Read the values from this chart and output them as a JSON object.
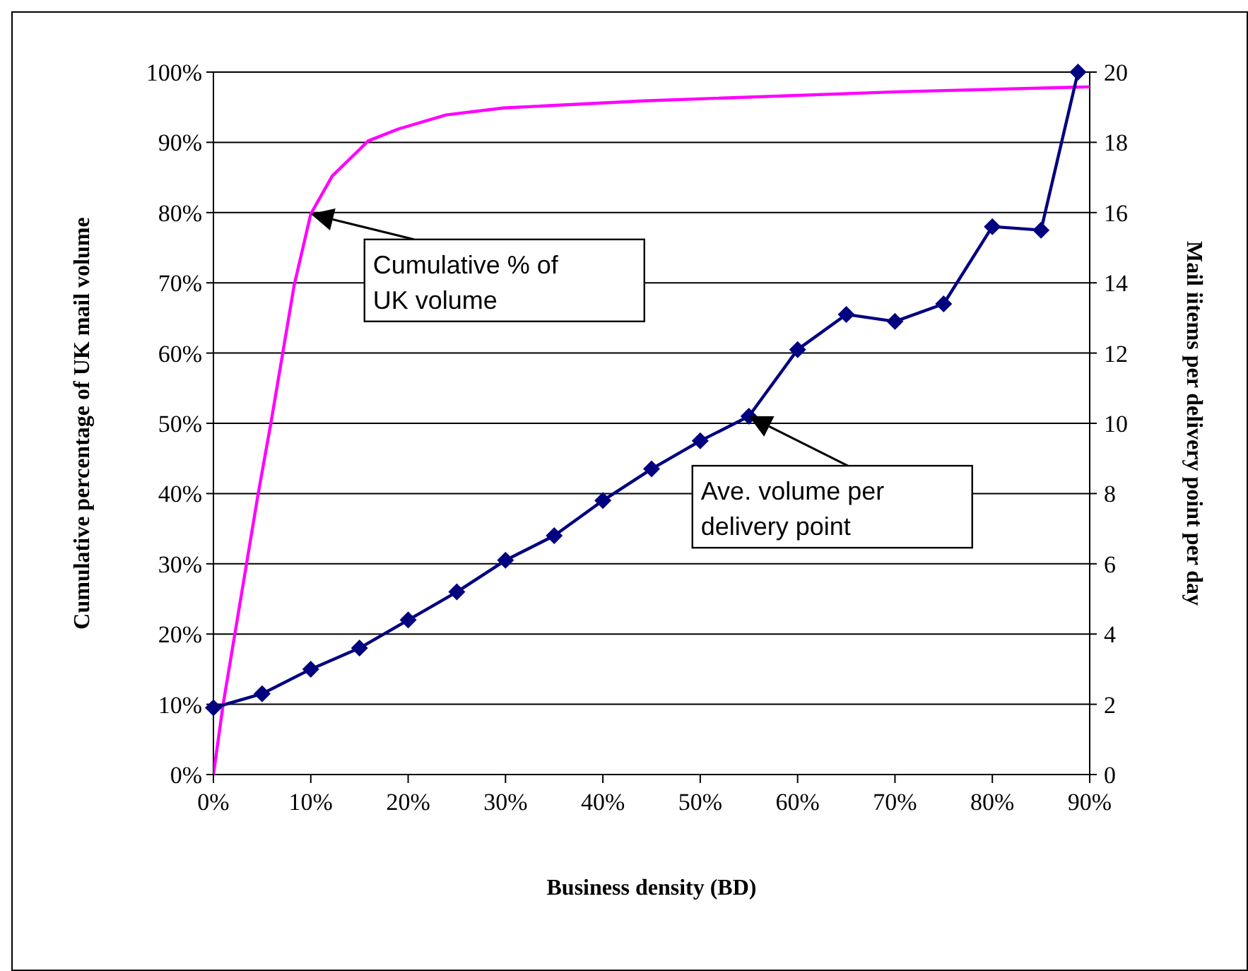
{
  "chart_data": {
    "type": "line",
    "xlabel": "Business density (BD)",
    "ylabel": "Cumulative percentage of UK mail volume",
    "y2label": "Mail iitems per delivery point per day",
    "xlim": [
      0,
      90
    ],
    "xticks": [
      {
        "value": 0,
        "label": "0%"
      },
      {
        "value": 10,
        "label": "10%"
      },
      {
        "value": 20,
        "label": "20%"
      },
      {
        "value": 30,
        "label": "30%"
      },
      {
        "value": 40,
        "label": "40%"
      },
      {
        "value": 50,
        "label": "50%"
      },
      {
        "value": 60,
        "label": "60%"
      },
      {
        "value": 70,
        "label": "70%"
      },
      {
        "value": 80,
        "label": "80%"
      },
      {
        "value": 90,
        "label": "90%"
      }
    ],
    "ylim": [
      0,
      100
    ],
    "yticks": [
      {
        "value": 0,
        "label": "0%"
      },
      {
        "value": 10,
        "label": "10%"
      },
      {
        "value": 20,
        "label": "20%"
      },
      {
        "value": 30,
        "label": "30%"
      },
      {
        "value": 40,
        "label": "40%"
      },
      {
        "value": 50,
        "label": "50%"
      },
      {
        "value": 60,
        "label": "60%"
      },
      {
        "value": 70,
        "label": "70%"
      },
      {
        "value": 80,
        "label": "80%"
      },
      {
        "value": 90,
        "label": "90%"
      },
      {
        "value": 100,
        "label": "100%"
      }
    ],
    "y2lim": [
      0,
      20
    ],
    "y2ticks": [
      0,
      2,
      4,
      6,
      8,
      10,
      12,
      14,
      16,
      18,
      20
    ],
    "grid": "y",
    "series": [
      {
        "color": "#ff00ff",
        "marker": "none",
        "x": [
          0,
          1,
          4.6,
          5.9,
          8.3,
          10,
          12.2,
          15.9,
          19,
          23.9,
          29.8,
          44.2,
          70.3,
          90
        ],
        "values": [
          0,
          10,
          40,
          50,
          69.7,
          79.8,
          85.2,
          90.2,
          91.9,
          93.9,
          94.9,
          95.9,
          97.2,
          97.9
        ]
      },
      {
        "color": "#000080",
        "marker": "diamond",
        "axis": "y2",
        "x": [
          0,
          5,
          10,
          15,
          20,
          25,
          30,
          35,
          40,
          45,
          50,
          55,
          60,
          65,
          70,
          75,
          80,
          85,
          88.8
        ],
        "values": [
          1.9,
          2.3,
          3.0,
          3.6,
          4.4,
          5.2,
          6.1,
          6.8,
          7.8,
          8.7,
          9.5,
          10.2,
          12.1,
          13.1,
          12.9,
          13.4,
          15.6,
          15.5,
          20
        ]
      }
    ],
    "annotations": [
      {
        "text": "Cumulative % of\nUK volume",
        "x": 10,
        "y": 79.8
      },
      {
        "text": "Ave. volume per\ndelivery point",
        "x": 55,
        "y": 51
      }
    ]
  }
}
